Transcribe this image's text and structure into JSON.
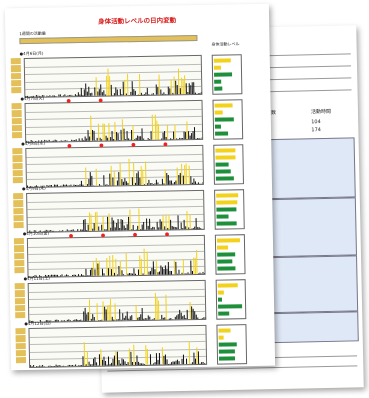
{
  "front": {
    "title": "身体活動レベルの日内変動",
    "legend_label": "1週間の活動量",
    "side_header": "身体活動レベル",
    "colors": {
      "yellow": "#f2d21b",
      "green": "#1e8f3a",
      "red": "#e22222",
      "black": "#111111"
    },
    "days": [
      {
        "label": "●4月6日(月)",
        "stars": 0
      },
      {
        "label": "●4月7日(火)",
        "stars": 2
      },
      {
        "label": "●4月8日(水)",
        "stars": 4
      },
      {
        "label": "●4月9日(木)",
        "stars": 0
      },
      {
        "label": "●4月10日(金)",
        "stars": 4
      },
      {
        "label": "●4月11日(土)",
        "stars": 0
      },
      {
        "label": "●4月12日(日)",
        "stars": 0
      }
    ]
  },
  "back": {
    "header_code": "0093",
    "row_label_1": "歩数",
    "row_label_2": "活動時間",
    "row_value_1": "104",
    "row_value_2": "174"
  }
}
